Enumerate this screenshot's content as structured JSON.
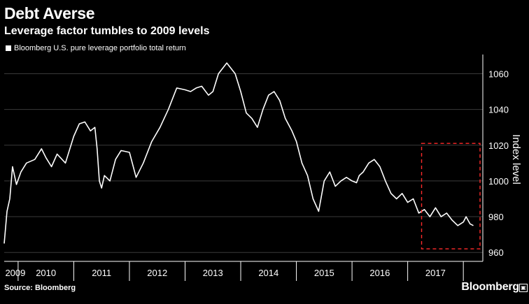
{
  "header": {
    "title": "Debt Averse",
    "subtitle": "Leverage factor tumbles to 2009 levels"
  },
  "legend": {
    "label": "Bloomberg U.S. pure leverage portfolio total return"
  },
  "footer": {
    "source": "Source: Bloomberg",
    "brand": "Bloomberg"
  },
  "colors": {
    "background": "#000000",
    "line": "#ffffff",
    "highlight": "#ff2a2a",
    "grid": "#3a3a3a"
  },
  "chart_data": {
    "type": "line",
    "title": "Debt Averse",
    "subtitle": "Leverage factor tumbles to 2009 levels",
    "ylabel": "Index level",
    "ylim": [
      955,
      1068
    ],
    "xlim": [
      2009.75,
      2018.35
    ],
    "y_ticks": [
      960,
      980,
      1000,
      1020,
      1040,
      1060
    ],
    "x_tick_labels": [
      {
        "label": "2009",
        "x": 2009.95
      },
      {
        "label": "2010",
        "x": 2010.5
      },
      {
        "label": "2011",
        "x": 2011.5
      },
      {
        "label": "2012",
        "x": 2012.5
      },
      {
        "label": "2013",
        "x": 2013.5
      },
      {
        "label": "2014",
        "x": 2014.5
      },
      {
        "label": "2015",
        "x": 2015.5
      },
      {
        "label": "2016",
        "x": 2016.5
      },
      {
        "label": "2017",
        "x": 2017.5
      }
    ],
    "year_dividers": [
      2010,
      2011,
      2012,
      2013,
      2014,
      2015,
      2016,
      2017,
      2018
    ],
    "grid": true,
    "legend_position": "top-left",
    "series": [
      {
        "name": "Bloomberg U.S. pure leverage portfolio total return",
        "x": [
          2009.75,
          2009.8,
          2009.85,
          2009.9,
          2009.97,
          2010.05,
          2010.15,
          2010.3,
          2010.42,
          2010.5,
          2010.6,
          2010.7,
          2010.85,
          2011.0,
          2011.1,
          2011.2,
          2011.3,
          2011.38,
          2011.42,
          2011.46,
          2011.5,
          2011.55,
          2011.65,
          2011.75,
          2011.85,
          2012.0,
          2012.12,
          2012.25,
          2012.4,
          2012.55,
          2012.7,
          2012.85,
          2013.0,
          2013.1,
          2013.2,
          2013.3,
          2013.42,
          2013.5,
          2013.6,
          2013.75,
          2013.9,
          2014.0,
          2014.1,
          2014.2,
          2014.3,
          2014.4,
          2014.5,
          2014.6,
          2014.7,
          2014.8,
          2014.92,
          2015.0,
          2015.1,
          2015.2,
          2015.3,
          2015.4,
          2015.5,
          2015.6,
          2015.7,
          2015.8,
          2015.9,
          2016.0,
          2016.08,
          2016.13,
          2016.2,
          2016.3,
          2016.4,
          2016.5,
          2016.6,
          2016.7,
          2016.8,
          2016.9,
          2017.0,
          2017.1,
          2017.2,
          2017.3,
          2017.4,
          2017.5,
          2017.6,
          2017.7,
          2017.8,
          2017.9,
          2018.0,
          2018.05,
          2018.12,
          2018.18
        ],
        "y": [
          965,
          983,
          990,
          1008,
          998,
          1005,
          1010,
          1012,
          1018,
          1013,
          1008,
          1015,
          1010,
          1025,
          1032,
          1033,
          1028,
          1030,
          1018,
          1000,
          996,
          1003,
          1000,
          1012,
          1017,
          1016,
          1002,
          1010,
          1022,
          1030,
          1040,
          1052,
          1051,
          1050,
          1052,
          1053,
          1048,
          1050,
          1060,
          1066,
          1060,
          1050,
          1038,
          1035,
          1030,
          1040,
          1048,
          1050,
          1045,
          1035,
          1028,
          1022,
          1010,
          1003,
          990,
          983,
          1000,
          1005,
          997,
          1000,
          1002,
          1000,
          999,
          1003,
          1005,
          1010,
          1012,
          1008,
          1000,
          993,
          990,
          993,
          988,
          990,
          982,
          984,
          980,
          985,
          980,
          982,
          978,
          975,
          977,
          980,
          976,
          975
        ]
      }
    ],
    "annotations": [
      {
        "type": "dashed-rectangle",
        "x_range": [
          2017.25,
          2018.3
        ],
        "y_range": [
          962,
          1021
        ]
      }
    ]
  }
}
